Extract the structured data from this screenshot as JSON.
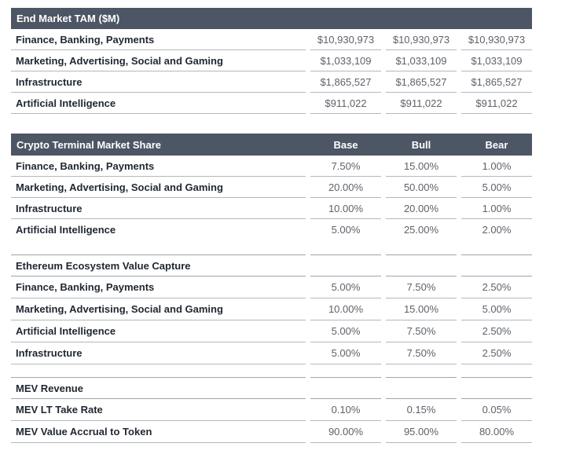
{
  "colors": {
    "band_bg": "#4d5665",
    "band_text": "#ffffff",
    "label_text": "#1f2732",
    "value_text": "#5d6269",
    "row_border": "#b3b8bd",
    "section_border": "#9ea5ac",
    "page_bg": "#ffffff"
  },
  "chart_data": [
    {
      "type": "table",
      "title": "End Market TAM ($M)",
      "header_style": "dark-band",
      "columns": [
        "",
        "",
        ""
      ],
      "rows": [
        {
          "label": "Finance, Banking, Payments",
          "values": [
            "$10,930,973",
            "$10,930,973",
            "$10,930,973"
          ]
        },
        {
          "label": "Marketing, Advertising, Social and Gaming",
          "values": [
            "$1,033,109",
            "$1,033,109",
            "$1,033,109"
          ]
        },
        {
          "label": "Infrastructure",
          "values": [
            "$1,865,527",
            "$1,865,527",
            "$1,865,527"
          ]
        },
        {
          "label": "Artificial Intelligence",
          "values": [
            "$911,022",
            "$911,022",
            "$911,022"
          ]
        }
      ]
    },
    {
      "type": "table",
      "title": "Crypto Terminal Market Share",
      "header_style": "dark-band",
      "columns": [
        "Base",
        "Bull",
        "Bear"
      ],
      "rows": [
        {
          "label": "Finance, Banking, Payments",
          "values": [
            "7.50%",
            "15.00%",
            "1.00%"
          ]
        },
        {
          "label": "Marketing, Advertising, Social and Gaming",
          "values": [
            "20.00%",
            "50.00%",
            "5.00%"
          ]
        },
        {
          "label": "Infrastructure",
          "values": [
            "10.00%",
            "20.00%",
            "1.00%"
          ]
        },
        {
          "label": "Artificial Intelligence",
          "values": [
            "5.00%",
            "25.00%",
            "2.00%"
          ]
        }
      ]
    },
    {
      "type": "table",
      "title": "Ethereum Ecosystem Value Capture",
      "header_style": "plain-bold",
      "columns": [
        "",
        "",
        ""
      ],
      "rows": [
        {
          "label": "Finance, Banking, Payments",
          "values": [
            "5.00%",
            "7.50%",
            "2.50%"
          ]
        },
        {
          "label": "Marketing, Advertising, Social and Gaming",
          "values": [
            "10.00%",
            "15.00%",
            "5.00%"
          ]
        },
        {
          "label": "Artificial Intelligence",
          "values": [
            "5.00%",
            "7.50%",
            "2.50%"
          ]
        },
        {
          "label": "Infrastructure",
          "values": [
            "5.00%",
            "7.50%",
            "2.50%"
          ]
        }
      ]
    },
    {
      "type": "table",
      "title": "MEV Revenue",
      "header_style": "plain-bold",
      "columns": [
        "",
        "",
        ""
      ],
      "rows": [
        {
          "label": "MEV LT Take Rate",
          "values": [
            "0.10%",
            "0.15%",
            "0.05%"
          ]
        },
        {
          "label": "MEV Value Accrual to Token",
          "values": [
            "90.00%",
            "95.00%",
            "80.00%"
          ]
        }
      ]
    }
  ]
}
